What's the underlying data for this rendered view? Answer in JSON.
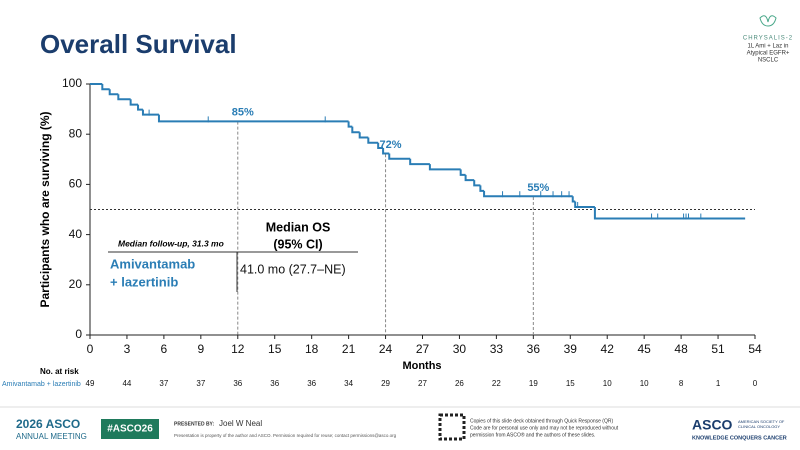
{
  "header": {
    "title": "Overall Survival",
    "logo": "CHRYSALIS-2",
    "logo_lines": [
      "1L Ami + Laz in",
      "Atypical EGFR+",
      "NSCLC"
    ]
  },
  "chart_data": {
    "type": "step",
    "color": "#2a7db5",
    "xlabel": "Months",
    "ylabel": "Participants who are surviving (%)",
    "xlim": [
      0,
      54
    ],
    "ylim": [
      0,
      100
    ],
    "xticks": [
      0,
      3,
      6,
      9,
      12,
      15,
      18,
      21,
      24,
      27,
      30,
      33,
      36,
      39,
      42,
      45,
      48,
      51,
      54
    ],
    "yticks": [
      0,
      20,
      40,
      60,
      80,
      100
    ],
    "x": [
      0,
      1.0,
      1.6,
      2.3,
      3.3,
      3.9,
      4.3,
      5.6,
      21.0,
      21.3,
      21.9,
      22.6,
      23.4,
      23.8,
      24.3,
      26.0,
      27.6,
      30.1,
      30.5,
      31.2,
      31.7,
      32.0,
      39.2,
      39.4,
      41.0,
      53.2
    ],
    "y": [
      100,
      97.9,
      95.9,
      93.9,
      91.8,
      89.8,
      87.8,
      85.1,
      83.0,
      80.8,
      78.7,
      76.6,
      74.5,
      72.3,
      70.2,
      68.1,
      66.0,
      63.8,
      61.7,
      59.6,
      57.4,
      55.3,
      53.2,
      51.0,
      46.4,
      46.4
    ],
    "censored": {
      "x": [
        4.8,
        9.6,
        19.1,
        33.5,
        34.9,
        36.6,
        37.6,
        38.3,
        38.9,
        39.6,
        45.6,
        46.1,
        48.2,
        48.4,
        48.6,
        49.6
      ],
      "y": [
        87.8,
        85.1,
        85.1,
        55.3,
        55.3,
        55.3,
        55.3,
        55.3,
        55.3,
        51.0,
        46.4,
        46.4,
        46.4,
        46.4,
        46.4,
        46.4
      ]
    },
    "landmarks": [
      {
        "x": 12,
        "value": 85,
        "label": "85%"
      },
      {
        "x": 24,
        "value": 72,
        "label": "72%"
      },
      {
        "x": 36,
        "value": 55,
        "label": "55%"
      }
    ],
    "median_line": 50,
    "followup": "Median follow-up, 31.3 mo",
    "median_header": [
      "Median OS",
      "(95% CI)"
    ],
    "arm_label": [
      "Amivantamab",
      "+ lazertinib"
    ],
    "median_value": "41.0 mo (27.7–NE)",
    "at_risk": {
      "title": "No. at risk",
      "name": "Amivantamab + lazertinib",
      "values": [
        49,
        44,
        37,
        37,
        36,
        36,
        36,
        34,
        29,
        27,
        26,
        22,
        19,
        15,
        10,
        10,
        8,
        1,
        0
      ]
    }
  },
  "footer": {
    "meeting": "2026 ASCO",
    "meeting_sub": "ANNUAL MEETING",
    "hashtag": "#ASCO26",
    "presented_by": "PRESENTED BY:",
    "presenter": "Joel W Neal",
    "notice": "Presentation is property of the author and ASCO. Permission required for reuse; contact permissions@asco.org",
    "qr_text": [
      "Copies of this slide deck obtained through Quick Response (QR)",
      "Code are for personal use only and may not be reproduced without",
      "permission from ASCO® and the authors of these slides."
    ],
    "org": "ASCO",
    "org_sub": [
      "AMERICAN SOCIETY OF",
      "CLINICAL ONCOLOGY"
    ],
    "tagline": "KNOWLEDGE CONQUERS CANCER"
  }
}
